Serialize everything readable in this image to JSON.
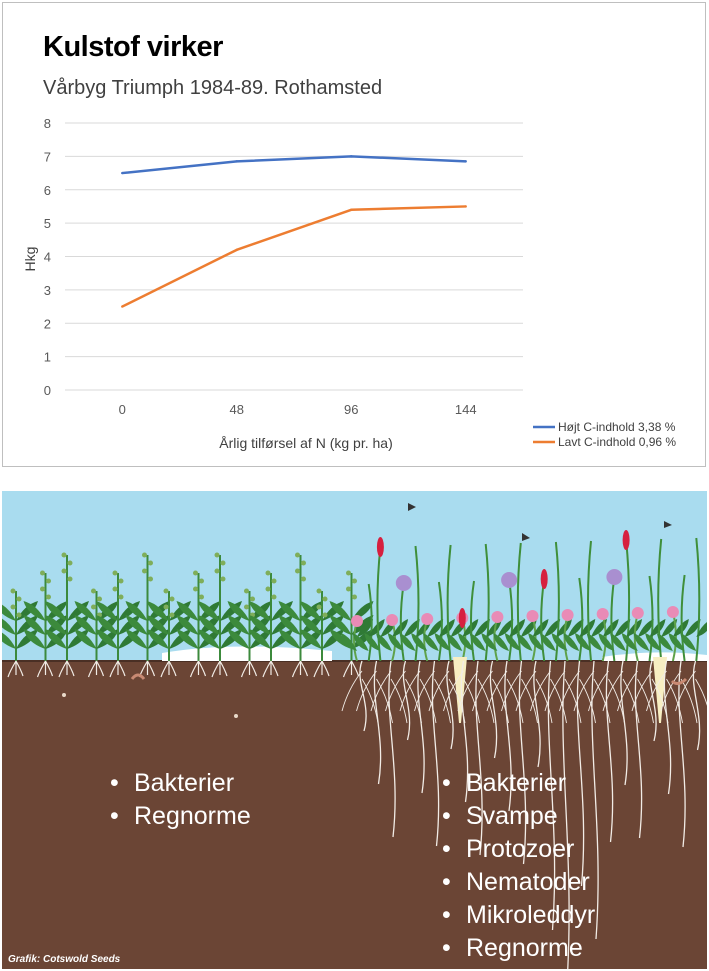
{
  "chart_data": {
    "type": "line",
    "title": "Kulstof virker",
    "subtitle": "Vårbyg Triumph 1984-89. Rothamsted",
    "xlabel": "Årlig tilførsel af N (kg pr. ha)",
    "ylabel": "Hkg",
    "categories": [
      "0",
      "48",
      "96",
      "144"
    ],
    "ylim": [
      0,
      8
    ],
    "yticks": [
      0,
      1,
      2,
      3,
      4,
      5,
      6,
      7,
      8
    ],
    "grid": true,
    "legend_position": "bottom-right",
    "series": [
      {
        "name": "Højt C-indhold 3,38 %",
        "values": [
          6.5,
          6.85,
          7.0,
          6.85
        ],
        "color": "#4472c4"
      },
      {
        "name": "Lavt C-indhold 0,96 %",
        "values": [
          2.5,
          4.2,
          5.4,
          5.5
        ],
        "color": "#ed7d31"
      }
    ]
  },
  "illustration": {
    "left_list": [
      "Bakterier",
      "Regnorme"
    ],
    "right_list": [
      "Bakterier",
      "Svampe",
      "Protozoer",
      "Nematoder",
      "Mikroleddyr",
      "Regnorme"
    ],
    "bullet_char": "•",
    "credit": "Grafik: Cotswold Seeds",
    "colors": {
      "sky": "#a9dcef",
      "soil": "#6b4535",
      "leaf": "#3c8a3c",
      "root": "#f2ece6",
      "flower": "#e98bb6"
    }
  }
}
